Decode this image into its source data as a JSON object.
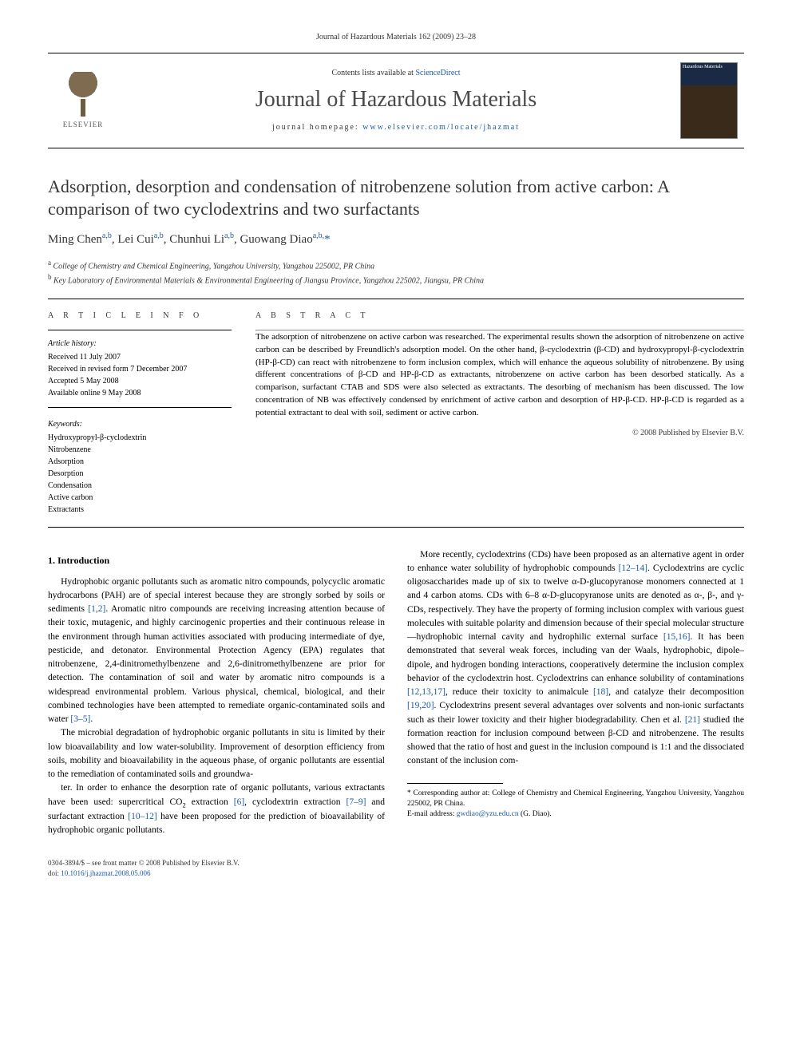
{
  "header": {
    "citation": "Journal of Hazardous Materials 162 (2009) 23–28"
  },
  "masthead": {
    "contents_prefix": "Contents lists available at ",
    "contents_link": "ScienceDirect",
    "journal_name": "Journal of Hazardous Materials",
    "homepage_prefix": "journal homepage: ",
    "homepage_url": "www.elsevier.com/locate/jhazmat",
    "publisher_name": "ELSEVIER",
    "cover_label": "Hazardous Materials"
  },
  "article": {
    "title": "Adsorption, desorption and condensation of nitrobenzene solution from active carbon: A comparison of two cyclodextrins and two surfactants",
    "authors_html": "Ming Chen<sup>a,b</sup>, Lei Cui<sup>a,b</sup>, Chunhui Li<sup>a,b</sup>, Guowang Diao<sup>a,b,</sup><span class='corr'>*</span>",
    "affiliations": [
      {
        "marker": "a",
        "text": "College of Chemistry and Chemical Engineering, Yangzhou University, Yangzhou 225002, PR China"
      },
      {
        "marker": "b",
        "text": "Key Laboratory of Environmental Materials & Environmental Engineering of Jiangsu Province, Yangzhou 225002, Jiangsu, PR China"
      }
    ]
  },
  "info": {
    "article_info_head": "A R T I C L E   I N F O",
    "abstract_head": "A B S T R A C T",
    "history_head": "Article history:",
    "history": [
      "Received 11 July 2007",
      "Received in revised form 7 December 2007",
      "Accepted 5 May 2008",
      "Available online 9 May 2008"
    ],
    "keywords_head": "Keywords:",
    "keywords": [
      "Hydroxypropyl-β-cyclodextrin",
      "Nitrobenzene",
      "Adsorption",
      "Desorption",
      "Condensation",
      "Active carbon",
      "Extractants"
    ],
    "abstract": "The adsorption of nitrobenzene on active carbon was researched. The experimental results shown the adsorption of nitrobenzene on active carbon can be described by Freundlich's adsorption model. On the other hand, β-cyclodextrin (β-CD) and hydroxypropyl-β-cyclodextrin (HP-β-CD) can react with nitrobenzene to form inclusion complex, which will enhance the aqueous solubility of nitrobenzene. By using different concentrations of β-CD and HP-β-CD as extractants, nitrobenzene on active carbon has been desorbed statically. As a comparison, surfactant CTAB and SDS were also selected as extractants. The desorbing of mechanism has been discussed. The low concentration of NB was effectively condensed by enrichment of active carbon and desorption of HP-β-CD. HP-β-CD is regarded as a potential extractant to deal with soil, sediment or active carbon.",
    "copyright": "© 2008 Published by Elsevier B.V."
  },
  "sections": {
    "intro_head": "1.  Introduction",
    "intro_paragraphs": [
      "Hydrophobic organic pollutants such as aromatic nitro compounds, polycyclic aromatic hydrocarbons (PAH) are of special interest because they are strongly sorbed by soils or sediments [1,2]. Aromatic nitro compounds are receiving increasing attention because of their toxic, mutagenic, and highly carcinogenic properties and their continuous release in the environment through human activities associated with producing intermediate of dye, pesticide, and detonator. Environmental Protection Agency (EPA) regulates that nitrobenzene, 2,4-dinitromethylbenzene and 2,6-dinitromethylbenzene are prior for detection. The contamination of soil and water by aromatic nitro compounds is a widespread environmental problem. Various physical, chemical, biological, and their combined technologies have been attempted to remediate organic-contaminated soils and water [3–5].",
      "The microbial degradation of hydrophobic organic pollutants in situ is limited by their low bioavailability and low water-solubility. Improvement of desorption efficiency from soils, mobility and bioavailability in the aqueous phase, of organic pollutants are essential to the remediation of contaminated soils and groundwa-",
      "ter. In order to enhance the desorption rate of organic pollutants, various extractants have been used: supercritical CO₂ extraction [6], cyclodextrin extraction [7–9] and surfactant extraction [10–12] have been proposed for the prediction of bioavailability of hydrophobic organic pollutants.",
      "More recently, cyclodextrins (CDs) have been proposed as an alternative agent in order to enhance water solubility of hydrophobic compounds [12–14]. Cyclodextrins are cyclic oligosaccharides made up of six to twelve α-D-glucopyranose monomers connected at 1 and 4 carbon atoms. CDs with 6–8 α-D-glucopyranose units are denoted as α-, β-, and γ-CDs, respectively. They have the property of forming inclusion complex with various guest molecules with suitable polarity and dimension because of their special molecular structure—hydrophobic internal cavity and hydrophilic external surface [15,16]. It has been demonstrated that several weak forces, including van der Waals, hydrophobic, dipole–dipole, and hydrogen bonding interactions, cooperatively determine the inclusion complex behavior of the cyclodextrin host. Cyclodextrins can enhance solubility of contaminations [12,13,17], reduce their toxicity to animalcule [18], and catalyze their decomposition [19,20]. Cyclodextrins present several advantages over solvents and non-ionic surfactants such as their lower toxicity and their higher biodegradability. Chen et al. [21] studied the formation reaction for inclusion compound between β-CD and nitrobenzene. The results showed that the ratio of host and guest in the inclusion compound is 1:1 and the dissociated constant of the inclusion com-"
    ]
  },
  "footnote": {
    "corr_label": "* Corresponding author at: College of Chemistry and Chemical Engineering, Yangzhou University, Yangzhou 225002, PR China.",
    "email_label": "E-mail address: ",
    "email": "gwdiao@yzu.edu.cn",
    "email_suffix": " (G. Diao)."
  },
  "footer": {
    "issn_line": "0304-3894/$ – see front matter © 2008 Published by Elsevier B.V.",
    "doi_prefix": "doi:",
    "doi": "10.1016/j.jhazmat.2008.05.006"
  },
  "refs": {
    "r1": "[1,2]",
    "r3": "[3–5]",
    "r6": "[6]",
    "r7": "[7–9]",
    "r10": "[10–12]",
    "r12": "[12–14]",
    "r15": "[15,16]",
    "r12b": "[12,13,17]",
    "r18": "[18]",
    "r19": "[19,20]",
    "r21": "[21]"
  },
  "colors": {
    "link": "#1a5aa8",
    "text": "#000000",
    "heading": "#363636",
    "rule": "#000000"
  }
}
